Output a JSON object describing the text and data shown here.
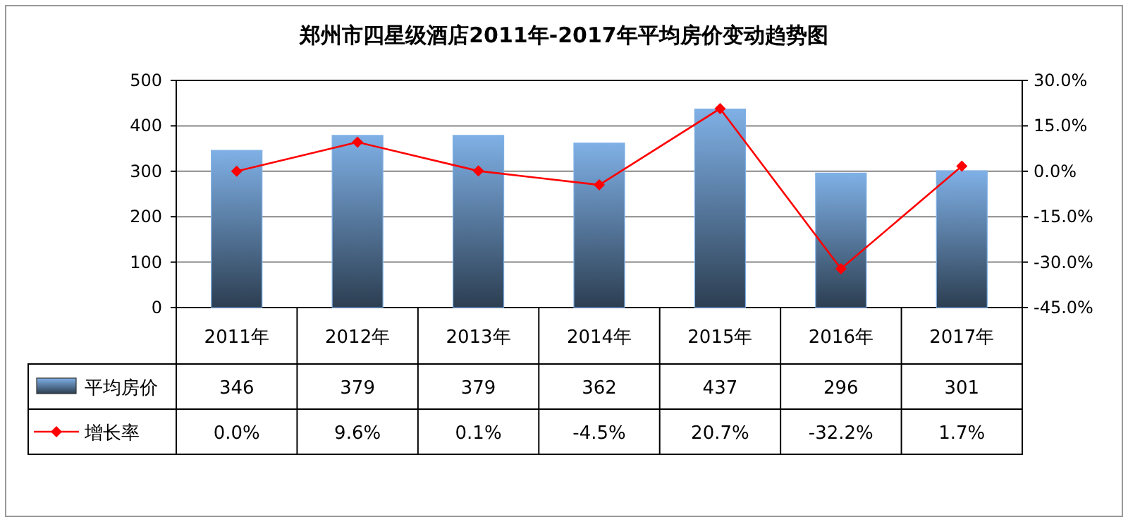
{
  "chart_data": {
    "type": "bar",
    "title": "郑州市四星级酒店2011年-2017年平均房价变动趋势图",
    "categories": [
      "2011年",
      "2012年",
      "2013年",
      "2014年",
      "2015年",
      "2016年",
      "2017年"
    ],
    "series": [
      {
        "name": "平均房价",
        "color": "#7fb0e6",
        "values": [
          346,
          379,
          379,
          362,
          437,
          296,
          301
        ],
        "value_labels": [
          "346",
          "379",
          "379",
          "362",
          "437",
          "296",
          "301"
        ]
      },
      {
        "name": "增长率",
        "type": "line",
        "axis": "y2",
        "color": "#ff0000",
        "marker": "diamond",
        "values": [
          0.0,
          9.6,
          0.1,
          -4.5,
          20.7,
          -32.2,
          1.7
        ],
        "value_labels": [
          "0.0%",
          "9.6%",
          "0.1%",
          "-4.5%",
          "20.7%",
          "-32.2%",
          "1.7%"
        ]
      }
    ],
    "ylim": [
      0,
      500
    ],
    "yticks": [
      0,
      100,
      200,
      300,
      400,
      500
    ],
    "y2lim": [
      -45,
      30
    ],
    "y2ticks": [
      {
        "value": -45,
        "label": "-45.0%"
      },
      {
        "value": -30,
        "label": "-30.0%"
      },
      {
        "value": -15,
        "label": "-15.0%"
      },
      {
        "value": 0,
        "label": "0.0%"
      },
      {
        "value": 15,
        "label": "15.0%"
      },
      {
        "value": 30,
        "label": "30.0%"
      }
    ],
    "grid": "y",
    "legend": "bottom"
  }
}
